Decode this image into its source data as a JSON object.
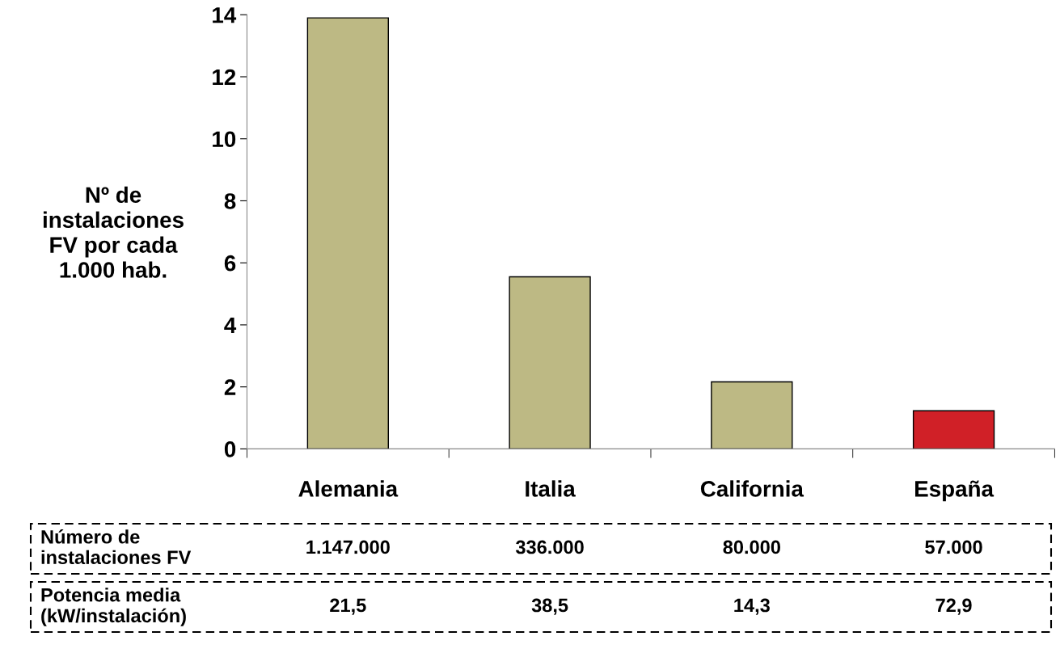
{
  "chart_data": {
    "type": "bar",
    "ylabel": "Nº de\ninstalaciones\nFV por cada\n1.000 hab.",
    "categories": [
      "Alemania",
      "Italia",
      "California",
      "España"
    ],
    "values": [
      13.9,
      5.55,
      2.16,
      1.23
    ],
    "colors": [
      "#bdb984",
      "#bdb984",
      "#bdb984",
      "#d02027"
    ],
    "ylim": [
      0,
      14
    ],
    "yticks": [
      0,
      2,
      4,
      6,
      8,
      10,
      12,
      14
    ],
    "grid": false,
    "legend": false,
    "annotations": [
      "Número de\ninstalaciones FV",
      "1.147.000",
      "336.000",
      "80.000",
      "57.000",
      "Potencia media\n(kW/instalación)",
      "21,5",
      "38,5",
      "14,3",
      "72,9"
    ]
  }
}
